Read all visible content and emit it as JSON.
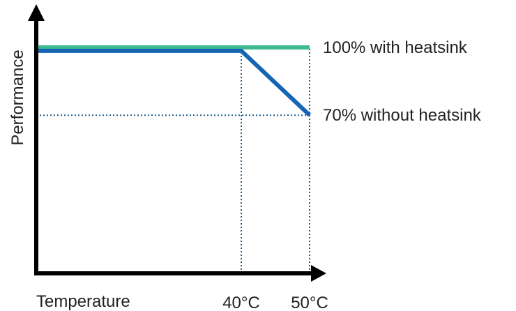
{
  "chart_data": {
    "type": "line",
    "title": "",
    "xlabel": "Temperature",
    "ylabel": "Performance",
    "x_ticks": [
      {
        "value": 40,
        "label": "40°C"
      },
      {
        "value": 50,
        "label": "50°C"
      }
    ],
    "xlim": [
      10,
      50
    ],
    "ylim": [
      0,
      100
    ],
    "grid": false,
    "legend": "none",
    "series": [
      {
        "name": "",
        "color": "#3dbb8e",
        "points": [
          [
            10,
            100
          ],
          [
            50,
            100
          ]
        ],
        "end_label": "100% with heatsink"
      },
      {
        "name": "",
        "color": "#1565b4",
        "points": [
          [
            10,
            98.5
          ],
          [
            40,
            98.5
          ],
          [
            50,
            70
          ]
        ],
        "end_label": "70% without heatsink"
      }
    ],
    "reference_lines": [
      {
        "orientation": "vertical",
        "x": 40,
        "from_y": 0,
        "to_y": 98.5
      },
      {
        "orientation": "vertical",
        "x": 50,
        "from_y": 0,
        "to_y": 100
      },
      {
        "orientation": "horizontal",
        "y": 70,
        "from_x": 10,
        "to_x": 50
      }
    ],
    "axis_color": "#000000",
    "reference_color": "#1f5f8b"
  }
}
